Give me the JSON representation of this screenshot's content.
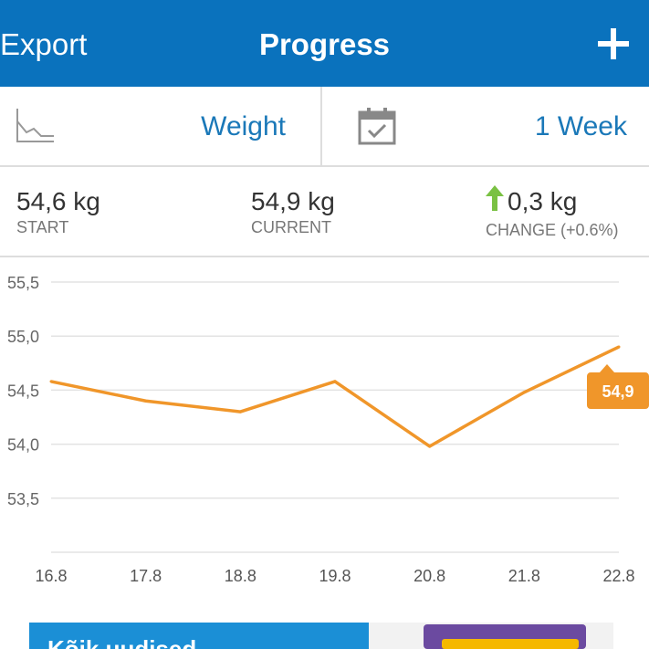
{
  "header": {
    "export_label": "Export",
    "title": "Progress",
    "add_icon": "plus-icon"
  },
  "selector": {
    "metric_label": "Weight",
    "metric_icon": "line-chart-icon",
    "period_label": "1 Week",
    "period_icon": "calendar-check-icon"
  },
  "stats": {
    "start_value": "54,6 kg",
    "start_label": "START",
    "current_value": "54,9 kg",
    "current_label": "CURRENT",
    "change_value": "0,3 kg",
    "change_label": "CHANGE (+0.6%)",
    "change_icon": "arrow-up-icon",
    "change_color": "#7ac143"
  },
  "chart_data": {
    "type": "line",
    "x": [
      "16.8",
      "17.8",
      "18.8",
      "19.8",
      "20.8",
      "21.8",
      "22.8"
    ],
    "series": [
      {
        "values": [
          54.58,
          54.4,
          54.3,
          54.58,
          53.98,
          54.48,
          54.9
        ]
      }
    ],
    "y_ticks": [
      "53,5",
      "54,0",
      "54,5",
      "55,0",
      "55,5"
    ],
    "ylim": [
      53.0,
      55.5
    ],
    "grid": true,
    "line_color": "#f0962a",
    "last_value_label": "54,9"
  },
  "ad": {
    "text": "Kõik uudised"
  }
}
